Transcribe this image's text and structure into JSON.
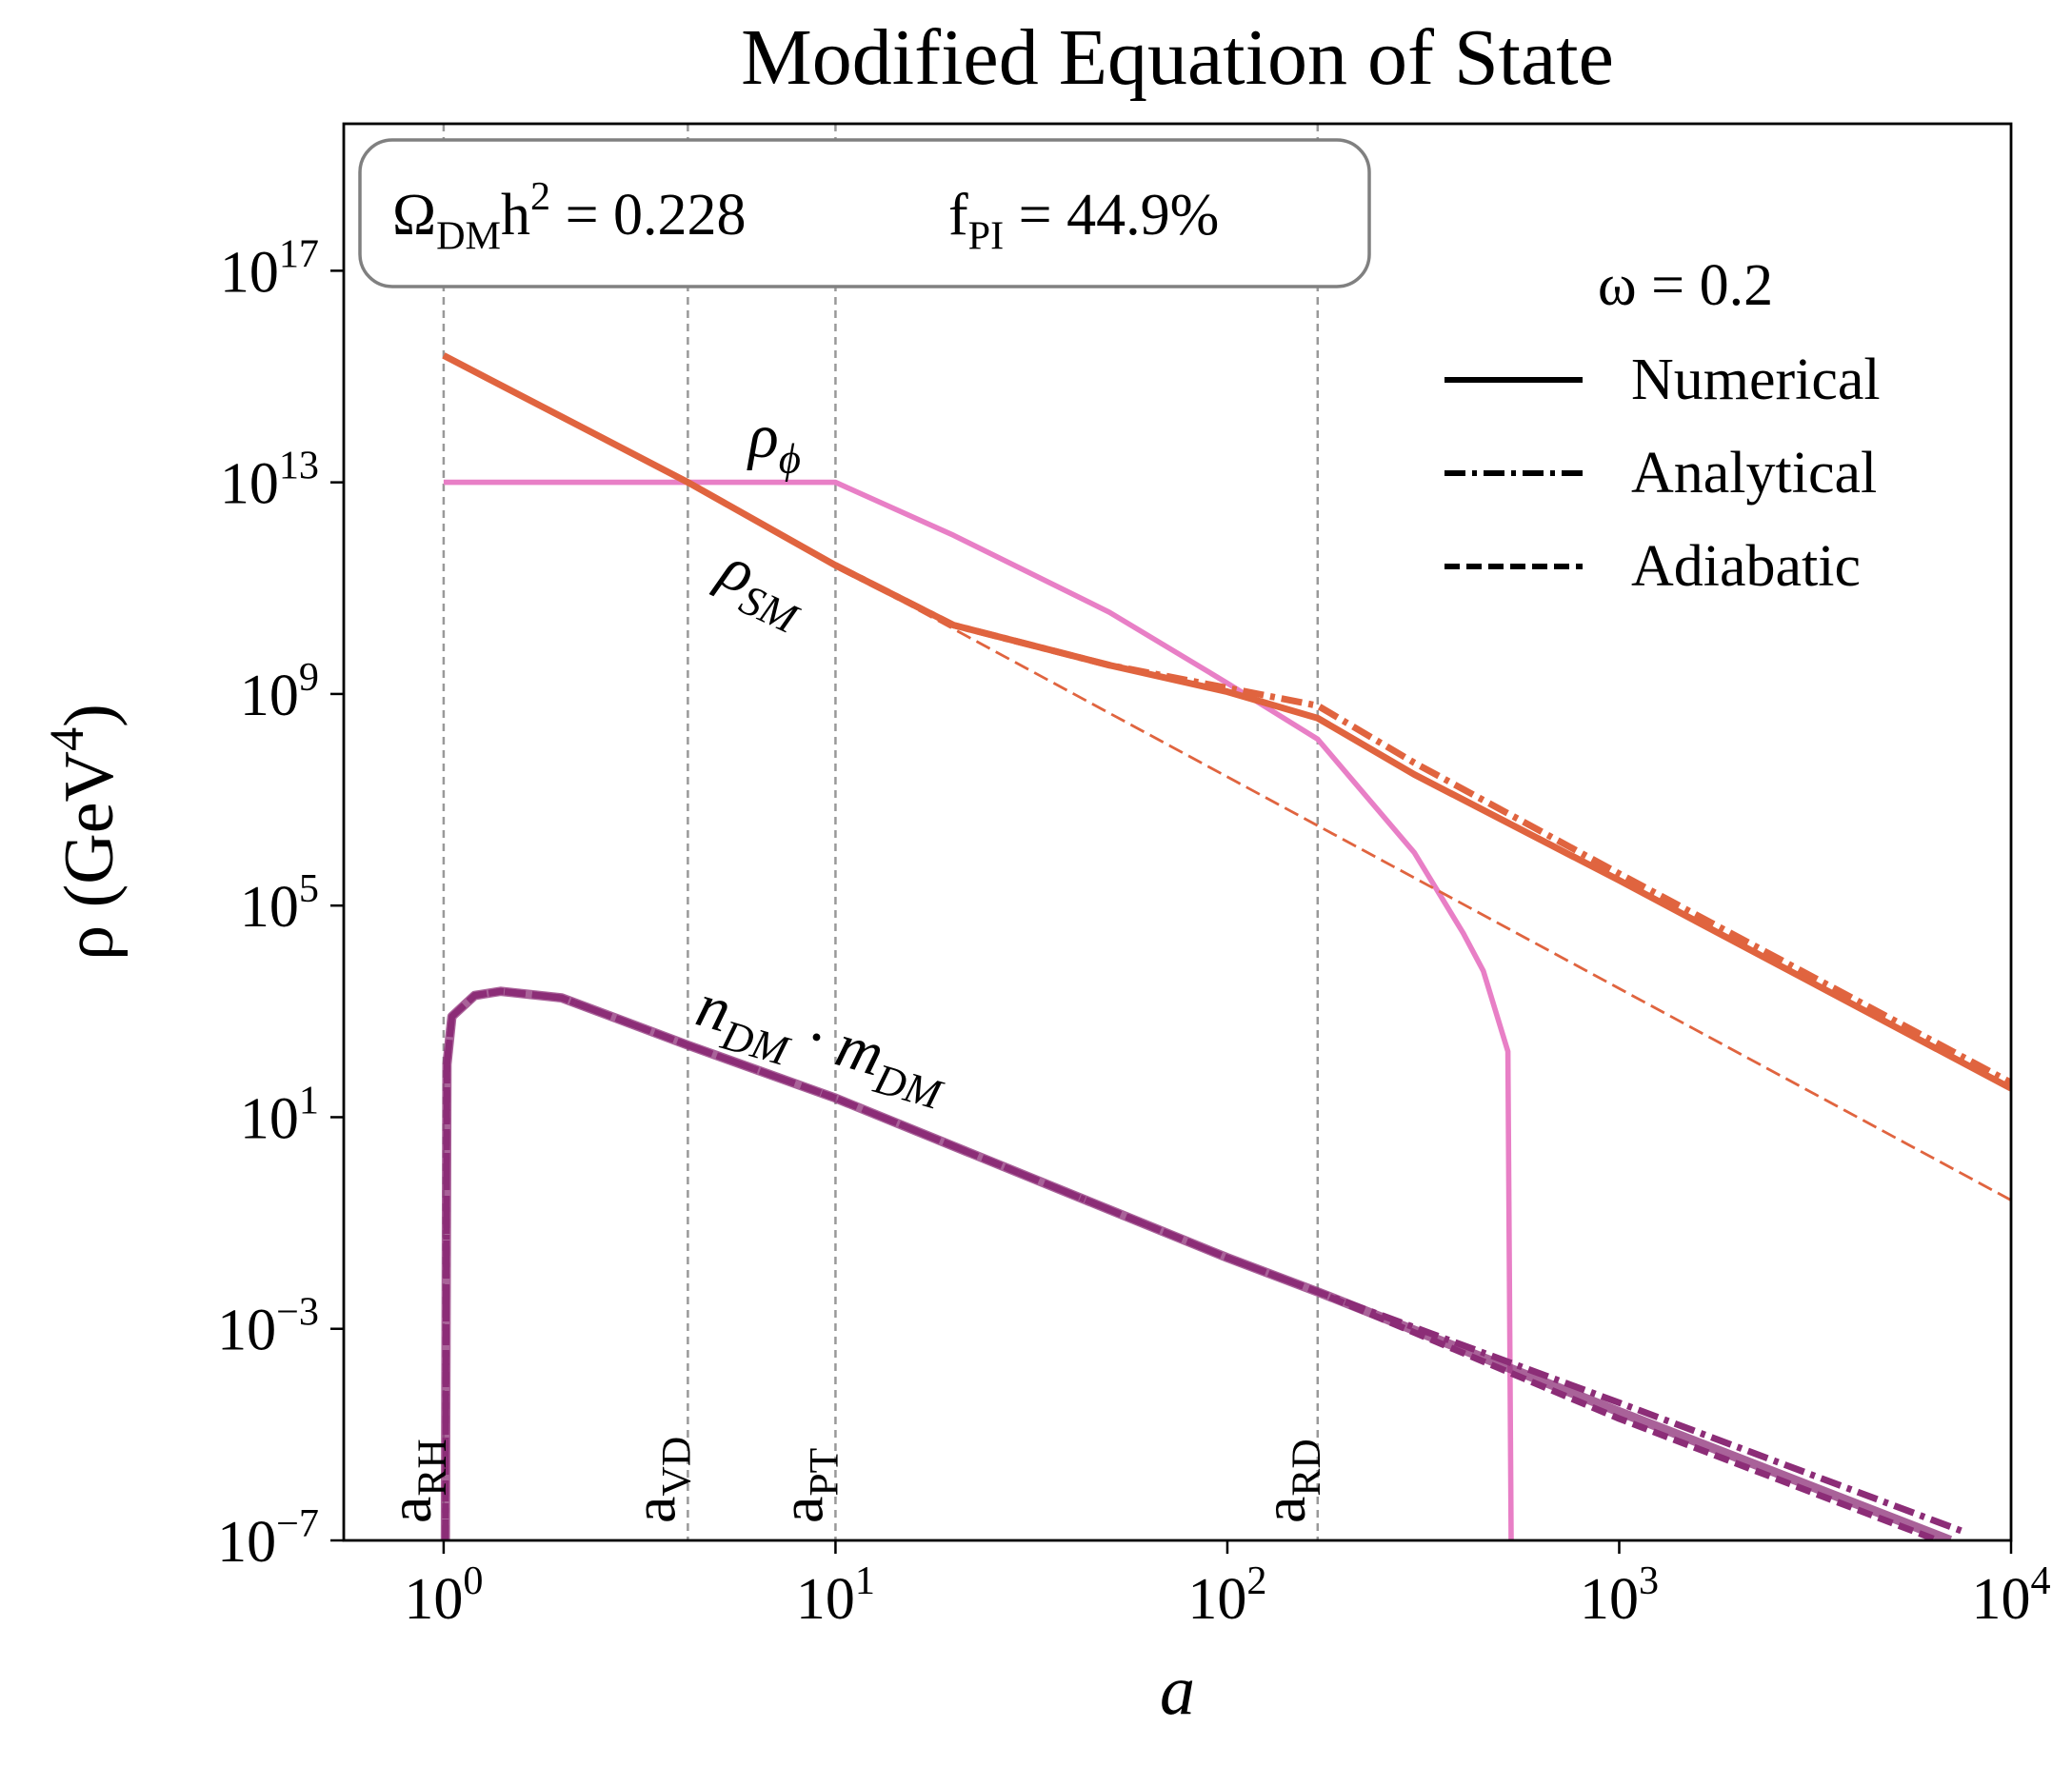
{
  "chart_data": {
    "type": "line",
    "title": "Modified Equation of State",
    "xlabel": "a",
    "ylabel": "ρ (GeV^{4})",
    "xscale": "log",
    "yscale": "log",
    "xlim": [
      0.556,
      10000
    ],
    "ylim": [
      1e-07,
      6e+19
    ],
    "xticks": [
      {
        "value": 1,
        "label": "10^{0}"
      },
      {
        "value": 10,
        "label": "10^{1}"
      },
      {
        "value": 100,
        "label": "10^{2}"
      },
      {
        "value": 1000,
        "label": "10^{3}"
      },
      {
        "value": 10000,
        "label": "10^{4}"
      }
    ],
    "yticks": [
      {
        "value": 1e-07,
        "label": "10^{−7}"
      },
      {
        "value": 0.001,
        "label": "10^{−3}"
      },
      {
        "value": 10,
        "label": "10^{1}"
      },
      {
        "value": 100000,
        "label": "10^{5}"
      },
      {
        "value": 1000000000,
        "label": "10^{9}"
      },
      {
        "value": 10000000000000,
        "label": "10^{13}"
      },
      {
        "value": 100000000000000000,
        "label": "10^{17}"
      }
    ],
    "info": [
      "Ω_{DM}h^{2} = 0.228",
      "f_{PI} = 44.9%"
    ],
    "vlines": [
      {
        "x": 1,
        "label": "a_{RH}"
      },
      {
        "x": 4.2,
        "label": "a_{VD}"
      },
      {
        "x": 10,
        "label": "a_{PT}"
      },
      {
        "x": 170,
        "label": "a_{RD}"
      }
    ],
    "vline_color": "#999999",
    "legend": {
      "title": "ω = 0.2",
      "position": "upper right",
      "color": "#000000",
      "entries": [
        {
          "name": "Numerical",
          "style": "solid"
        },
        {
          "name": "Analytical",
          "style": "dashdot"
        },
        {
          "name": "Adiabatic",
          "style": "dashed"
        }
      ]
    },
    "annotations": [
      "ρ_{ϕ}",
      "ρ_{SM}",
      "n_{DM} · m_{DM}"
    ],
    "series": [
      {
        "color": "#e87fc6",
        "style": "solid",
        "linewidth": 4,
        "x": [
          1,
          10,
          20,
          50,
          100,
          170,
          300,
          400,
          450,
          520,
          530
        ],
        "values": [
          10000000000000.0,
          10000000000000.0,
          1000000000000.0,
          35000000000.0,
          1600000000.0,
          140000000.0,
          1000000.0,
          30000.0,
          5800.0,
          175,
          1e-07
        ]
      },
      {
        "color": "#e0643f",
        "style": "solid",
        "linewidth": 5,
        "x": [
          1,
          4.2,
          10,
          20,
          50,
          100,
          170,
          300,
          1000,
          10000
        ],
        "values": [
          2500000000000000.0,
          10000000000000.0,
          270000000000.0,
          20000000000.0,
          3500000000.0,
          1100000000.0,
          350000000.0,
          30000000.0,
          300000.0,
          35
        ]
      },
      {
        "color": "#e0643f",
        "style": "dashdot",
        "linewidth": 5,
        "x": [
          10,
          20,
          50,
          100,
          170,
          300,
          1000,
          10000
        ],
        "values": [
          270000000000.0,
          20000000000.0,
          3500000000.0,
          1300000000.0,
          600000000.0,
          50000000.0,
          400000.0,
          45
        ]
      },
      {
        "color": "#e0643f",
        "style": "dashed",
        "linewidth": 2,
        "x": [
          13,
          10000
        ],
        "values": [
          95000000000.0,
          0.27
        ]
      },
      {
        "color": "#8c2d77",
        "style": "solid",
        "linewidth": 7,
        "opacity": 0.75,
        "x": [
          1.01,
          1.02,
          1.05,
          1.2,
          1.4,
          2,
          4.2,
          10,
          100,
          170,
          1000,
          7000
        ],
        "values": [
          1e-07,
          100,
          800,
          2000,
          2400,
          1800,
          230,
          23,
          0.022,
          0.005,
          2.7e-05,
          1e-07
        ]
      },
      {
        "color": "#8c2d77",
        "style": "dashdot",
        "linewidth": 5,
        "x": [
          1.01,
          1.02,
          1.05,
          1.2,
          1.4,
          2,
          4.2,
          10,
          100,
          170,
          1000,
          7500
        ],
        "values": [
          1e-07,
          100,
          800,
          2000,
          2400,
          1800,
          230,
          23,
          0.022,
          0.005,
          4e-05,
          1.5e-07
        ]
      },
      {
        "color": "#8c2d77",
        "style": "dashed",
        "linewidth": 5,
        "x": [
          1.01,
          1.02,
          1.05,
          1.2,
          1.4,
          2,
          4.2,
          10,
          100,
          170,
          1000,
          6500
        ],
        "values": [
          1e-07,
          100,
          800,
          2000,
          2400,
          1800,
          230,
          23,
          0.022,
          0.005,
          2e-05,
          1e-07
        ]
      }
    ]
  }
}
